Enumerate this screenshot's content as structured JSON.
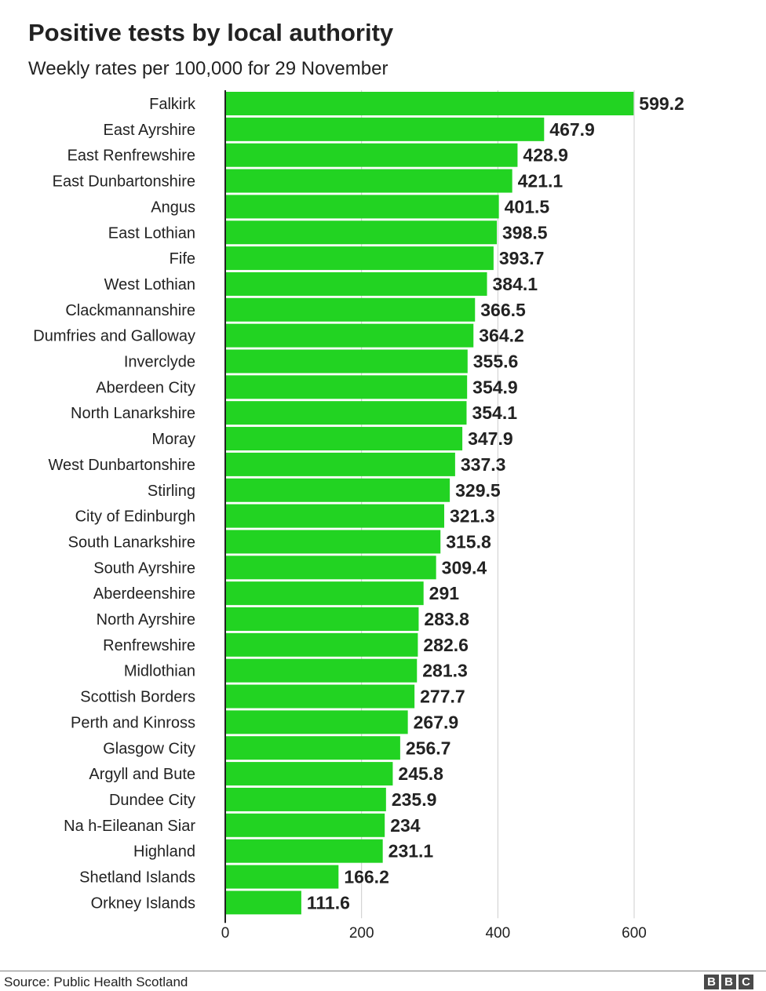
{
  "title": "Positive tests by local authority",
  "subtitle": "Weekly rates per 100,000 for 29 November",
  "source": "Source: Public Health Scotland",
  "logo": {
    "letters": [
      "B",
      "B",
      "C"
    ]
  },
  "colors": {
    "bar": "#22d322",
    "grid": "#cccccc",
    "axis": "#222222",
    "text": "#222222"
  },
  "chart_data": {
    "type": "bar",
    "orientation": "horizontal",
    "categories": [
      "Falkirk",
      "East Ayrshire",
      "East Renfrewshire",
      "East Dunbartonshire",
      "Angus",
      "East Lothian",
      "Fife",
      "West Lothian",
      "Clackmannanshire",
      "Dumfries and Galloway",
      "Inverclyde",
      "Aberdeen City",
      "North Lanarkshire",
      "Moray",
      "West Dunbartonshire",
      "Stirling",
      "City of Edinburgh",
      "South Lanarkshire",
      "South Ayrshire",
      "Aberdeenshire",
      "North Ayrshire",
      "Renfrewshire",
      "Midlothian",
      "Scottish Borders",
      "Perth and Kinross",
      "Glasgow City",
      "Argyll and Bute",
      "Dundee City",
      "Na h-Eileanan Siar",
      "Highland",
      "Shetland Islands",
      "Orkney Islands"
    ],
    "values": [
      599.2,
      467.9,
      428.9,
      421.1,
      401.5,
      398.5,
      393.7,
      384.1,
      366.5,
      364.2,
      355.6,
      354.9,
      354.1,
      347.9,
      337.3,
      329.5,
      321.3,
      315.8,
      309.4,
      291,
      283.8,
      282.6,
      281.3,
      277.7,
      267.9,
      256.7,
      245.8,
      235.9,
      234,
      231.1,
      166.2,
      111.6
    ],
    "value_labels": [
      "599.2",
      "467.9",
      "428.9",
      "421.1",
      "401.5",
      "398.5",
      "393.7",
      "384.1",
      "366.5",
      "364.2",
      "355.6",
      "354.9",
      "354.1",
      "347.9",
      "337.3",
      "329.5",
      "321.3",
      "315.8",
      "309.4",
      "291",
      "283.8",
      "282.6",
      "281.3",
      "277.7",
      "267.9",
      "256.7",
      "245.8",
      "235.9",
      "234",
      "231.1",
      "166.2",
      "111.6"
    ],
    "xticks": [
      0,
      200,
      400,
      600
    ],
    "xtick_labels": [
      "0",
      "200",
      "400",
      "600"
    ],
    "xlim": [
      0,
      600
    ],
    "grid": true
  }
}
